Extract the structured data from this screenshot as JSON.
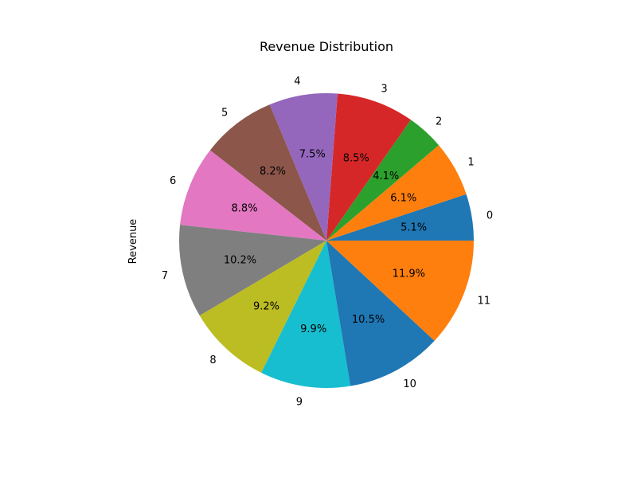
{
  "chart_data": {
    "type": "pie",
    "title": "Revenue Distribution",
    "ylabel": "Revenue",
    "categories": [
      "0",
      "1",
      "2",
      "3",
      "4",
      "5",
      "6",
      "7",
      "8",
      "9",
      "10",
      "11"
    ],
    "percentages": [
      5.1,
      6.1,
      4.1,
      8.5,
      7.5,
      8.2,
      8.8,
      10.2,
      9.2,
      9.9,
      10.5,
      11.9
    ],
    "percent_labels": [
      "5.1%",
      "6.1%",
      "4.1%",
      "8.5%",
      "7.5%",
      "8.2%",
      "8.8%",
      "10.2%",
      "9.2%",
      "9.9%",
      "10.5%",
      "11.9%"
    ],
    "colors": [
      "#1f77b4",
      "#ff7f0e",
      "#2ca02c",
      "#d62728",
      "#9467bd",
      "#8c564b",
      "#e377c2",
      "#7f7f7f",
      "#bcbd22",
      "#17becf",
      "#1f77b4",
      "#ff7f0e"
    ],
    "start_angle_deg": 0,
    "direction": "counterclockwise"
  }
}
